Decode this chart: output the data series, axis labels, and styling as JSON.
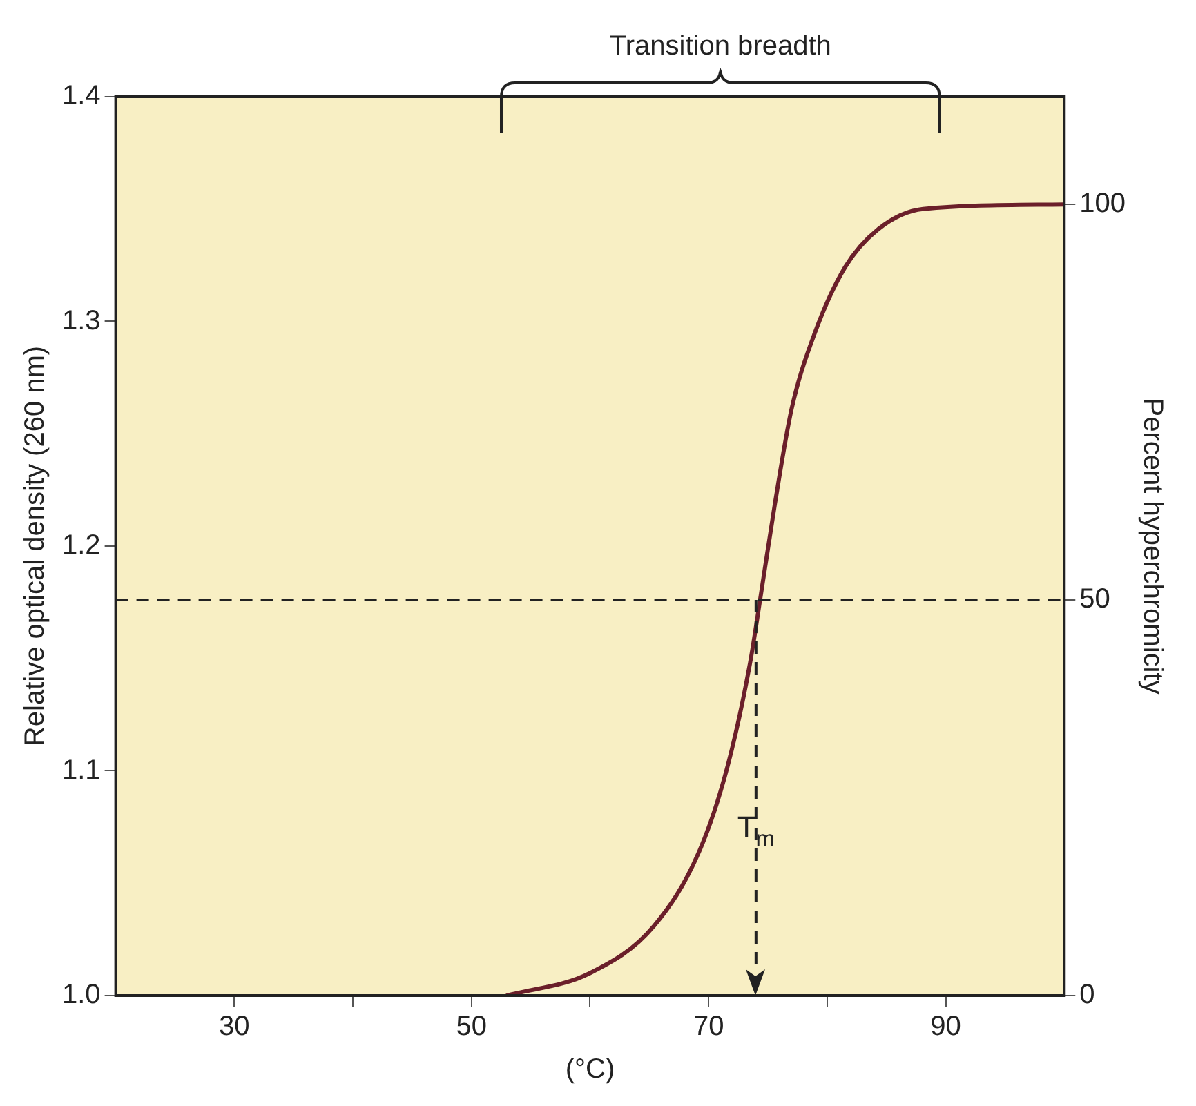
{
  "chart_data": {
    "type": "line",
    "xlabel": "(°C)",
    "ylabel": "Relative optical density (260 nm)",
    "y2label": "Percent hyperchromicity",
    "annotations": [
      "Transition breadth"
    ],
    "x": [
      53,
      60,
      65.4,
      69.2,
      71.6,
      73.5,
      74.4,
      75.6,
      77,
      78.9,
      81.5,
      84.3,
      88.1,
      100
    ],
    "series": [
      {
        "color": "#6b1f2a",
        "values": [
          1.0,
          1.01,
          1.031,
          1.064,
          1.102,
          1.148,
          1.178,
          1.219,
          1.261,
          1.294,
          1.324,
          1.341,
          1.35,
          1.352
        ]
      }
    ],
    "xlim": [
      20,
      100
    ],
    "xticks": [
      30,
      {
        "value": 40,
        "label": null
      },
      50,
      {
        "value": 60,
        "label": null
      },
      70,
      {
        "value": 80,
        "label": null
      },
      90
    ],
    "ylim": [
      1.0,
      1.4
    ],
    "yticks": [
      {
        "value": 1.0,
        "label": "1.0"
      },
      1.1,
      1.2,
      1.3,
      1.4
    ],
    "y2lim": [
      0,
      113.6
    ],
    "y2ticks": [
      0,
      50,
      100
    ],
    "ref_lines": [
      {
        "axis": "y2",
        "value": 50,
        "line_style": "dashed",
        "color": "#222222"
      },
      {
        "axis": "x",
        "value": 74,
        "label": "T$_{m}$",
        "line_style": "dashed",
        "color": "#222222"
      }
    ],
    "grid": false,
    "legend": false,
    "marker": "none",
    "line_style": "solid"
  }
}
